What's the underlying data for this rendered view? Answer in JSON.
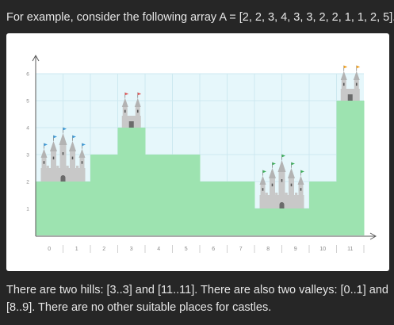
{
  "intro_text": "For example, consider the following array A = [2, 2, 3, 4, 3, 3, 2, 2, 1, 1, 2, 5].",
  "outro_text": "There are two hills: [3..3] and [11..11]. There are also two valleys: [0..1] and [8..9]. There are no other suitable places for castles.",
  "colors": {
    "page_background": "#262626",
    "text": "#e6e6e6",
    "sky": "#e6f7fb",
    "terrain": "#9de3b0",
    "grid": "#cde9f0",
    "axis": "#5a5a5a",
    "castle": "#c8c8c8",
    "flag_blue": "#3b9ad9",
    "flag_red": "#e05a5a",
    "flag_green": "#3cae5a",
    "flag_orange": "#f0a020"
  },
  "chart_data": {
    "type": "bar",
    "categories": [
      "0",
      "1",
      "2",
      "3",
      "4",
      "5",
      "6",
      "7",
      "8",
      "9",
      "10",
      "11"
    ],
    "values": [
      2,
      2,
      3,
      4,
      3,
      3,
      2,
      2,
      1,
      1,
      2,
      5
    ],
    "y_ticks": [
      "1",
      "2",
      "3",
      "4",
      "5",
      "6"
    ],
    "ylim": [
      0,
      6
    ],
    "grid": true,
    "castles": [
      {
        "range": "[0..1]",
        "kind": "valley",
        "flag_color": "blue"
      },
      {
        "range": "[3..3]",
        "kind": "hill",
        "flag_color": "red"
      },
      {
        "range": "[8..9]",
        "kind": "valley",
        "flag_color": "green"
      },
      {
        "range": "[11..11]",
        "kind": "hill",
        "flag_color": "orange"
      }
    ]
  }
}
